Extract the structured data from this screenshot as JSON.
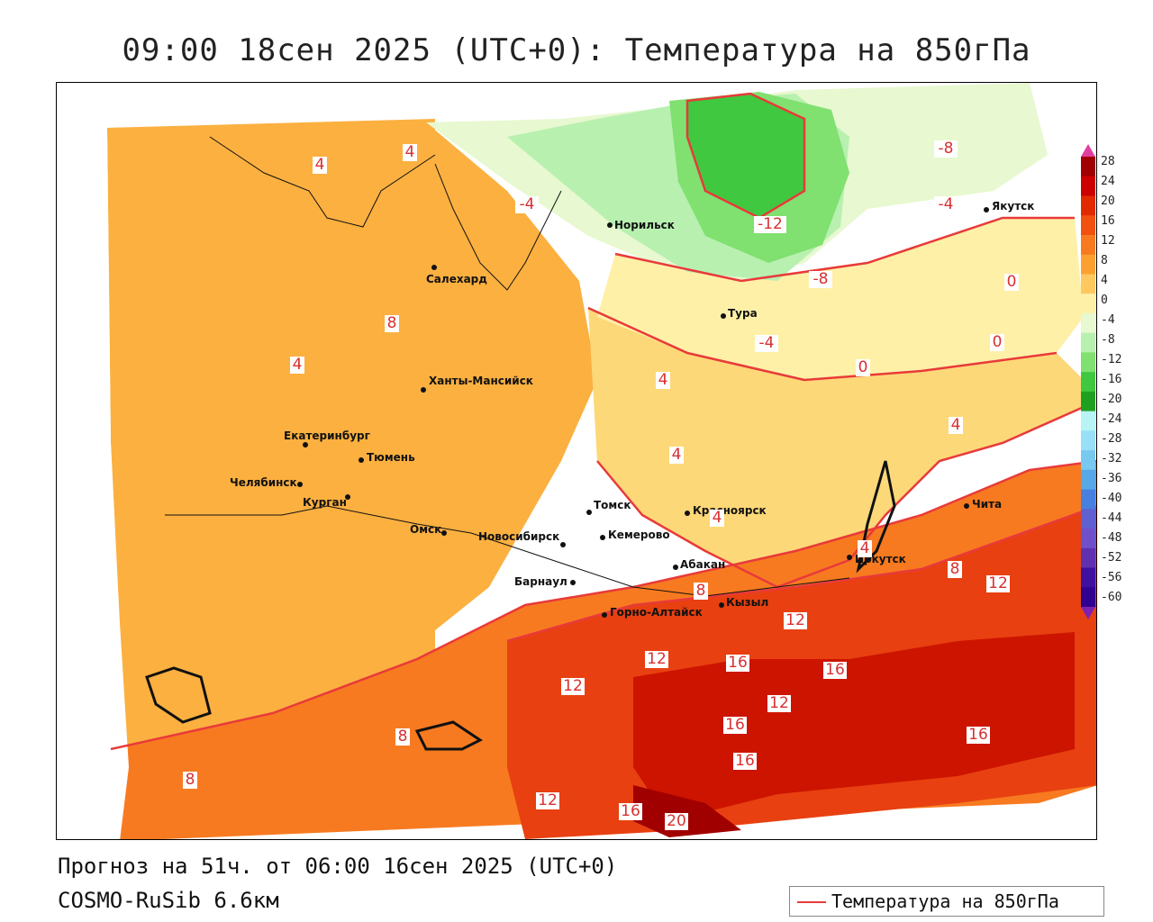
{
  "title": "09:00 18сен 2025 (UTC+0): Температура на 850гПа",
  "forecast_text": "Прогноз на 51ч. от 06:00 16сен 2025 (UTC+0)",
  "model_text": "COSMO-RuSib 6.6км",
  "legend": {
    "line_label": "Температура на 850гПа",
    "line_color": "#e83a3a"
  },
  "colorbar": {
    "ticks": [
      "28",
      "24",
      "20",
      "16",
      "12",
      "8",
      "4",
      "0",
      "-4",
      "-8",
      "-12",
      "-16",
      "-20",
      "-24",
      "-28",
      "-32",
      "-36",
      "-40",
      "-44",
      "-48",
      "-52",
      "-56",
      "-60"
    ],
    "colors": [
      "#a10000",
      "#cc0000",
      "#e12a00",
      "#f05010",
      "#f77a20",
      "#fba030",
      "#fdc860",
      "#fff0a8",
      "#e8f8d0",
      "#b8f0b0",
      "#80e070",
      "#40c840",
      "#20a020",
      "#b8f4f4",
      "#98e0f8",
      "#78c8f0",
      "#58a8e8",
      "#4880e0",
      "#6060d0",
      "#7050c8",
      "#6030b0",
      "#4010a0",
      "#300090"
    ]
  },
  "cities": [
    {
      "name": "Норильск"
    },
    {
      "name": "Якутск"
    },
    {
      "name": "Салехард"
    },
    {
      "name": "Тура"
    },
    {
      "name": "Ханты-Мансийск"
    },
    {
      "name": "Екатеринбург"
    },
    {
      "name": "Тюмень"
    },
    {
      "name": "Челябинск"
    },
    {
      "name": "Курган"
    },
    {
      "name": "Омск"
    },
    {
      "name": "Новосибирск"
    },
    {
      "name": "Томск"
    },
    {
      "name": "Кемерово"
    },
    {
      "name": "Красноярск"
    },
    {
      "name": "Абакан"
    },
    {
      "name": "Барнаул"
    },
    {
      "name": "Горно-Алтайск"
    },
    {
      "name": "Кызыл"
    },
    {
      "name": "Иркутск"
    },
    {
      "name": "Чита"
    }
  ],
  "isotherm_labels": [
    "4",
    "4",
    "-4",
    "-12",
    "-8",
    "-4",
    "-8",
    "-4",
    "0",
    "0",
    "0",
    "8",
    "4",
    "4",
    "4",
    "4",
    "4",
    "4",
    "8",
    "8",
    "12",
    "12",
    "12",
    "16",
    "16",
    "12",
    "16",
    "16",
    "16",
    "12",
    "12",
    "16",
    "20",
    "8",
    "8"
  ]
}
